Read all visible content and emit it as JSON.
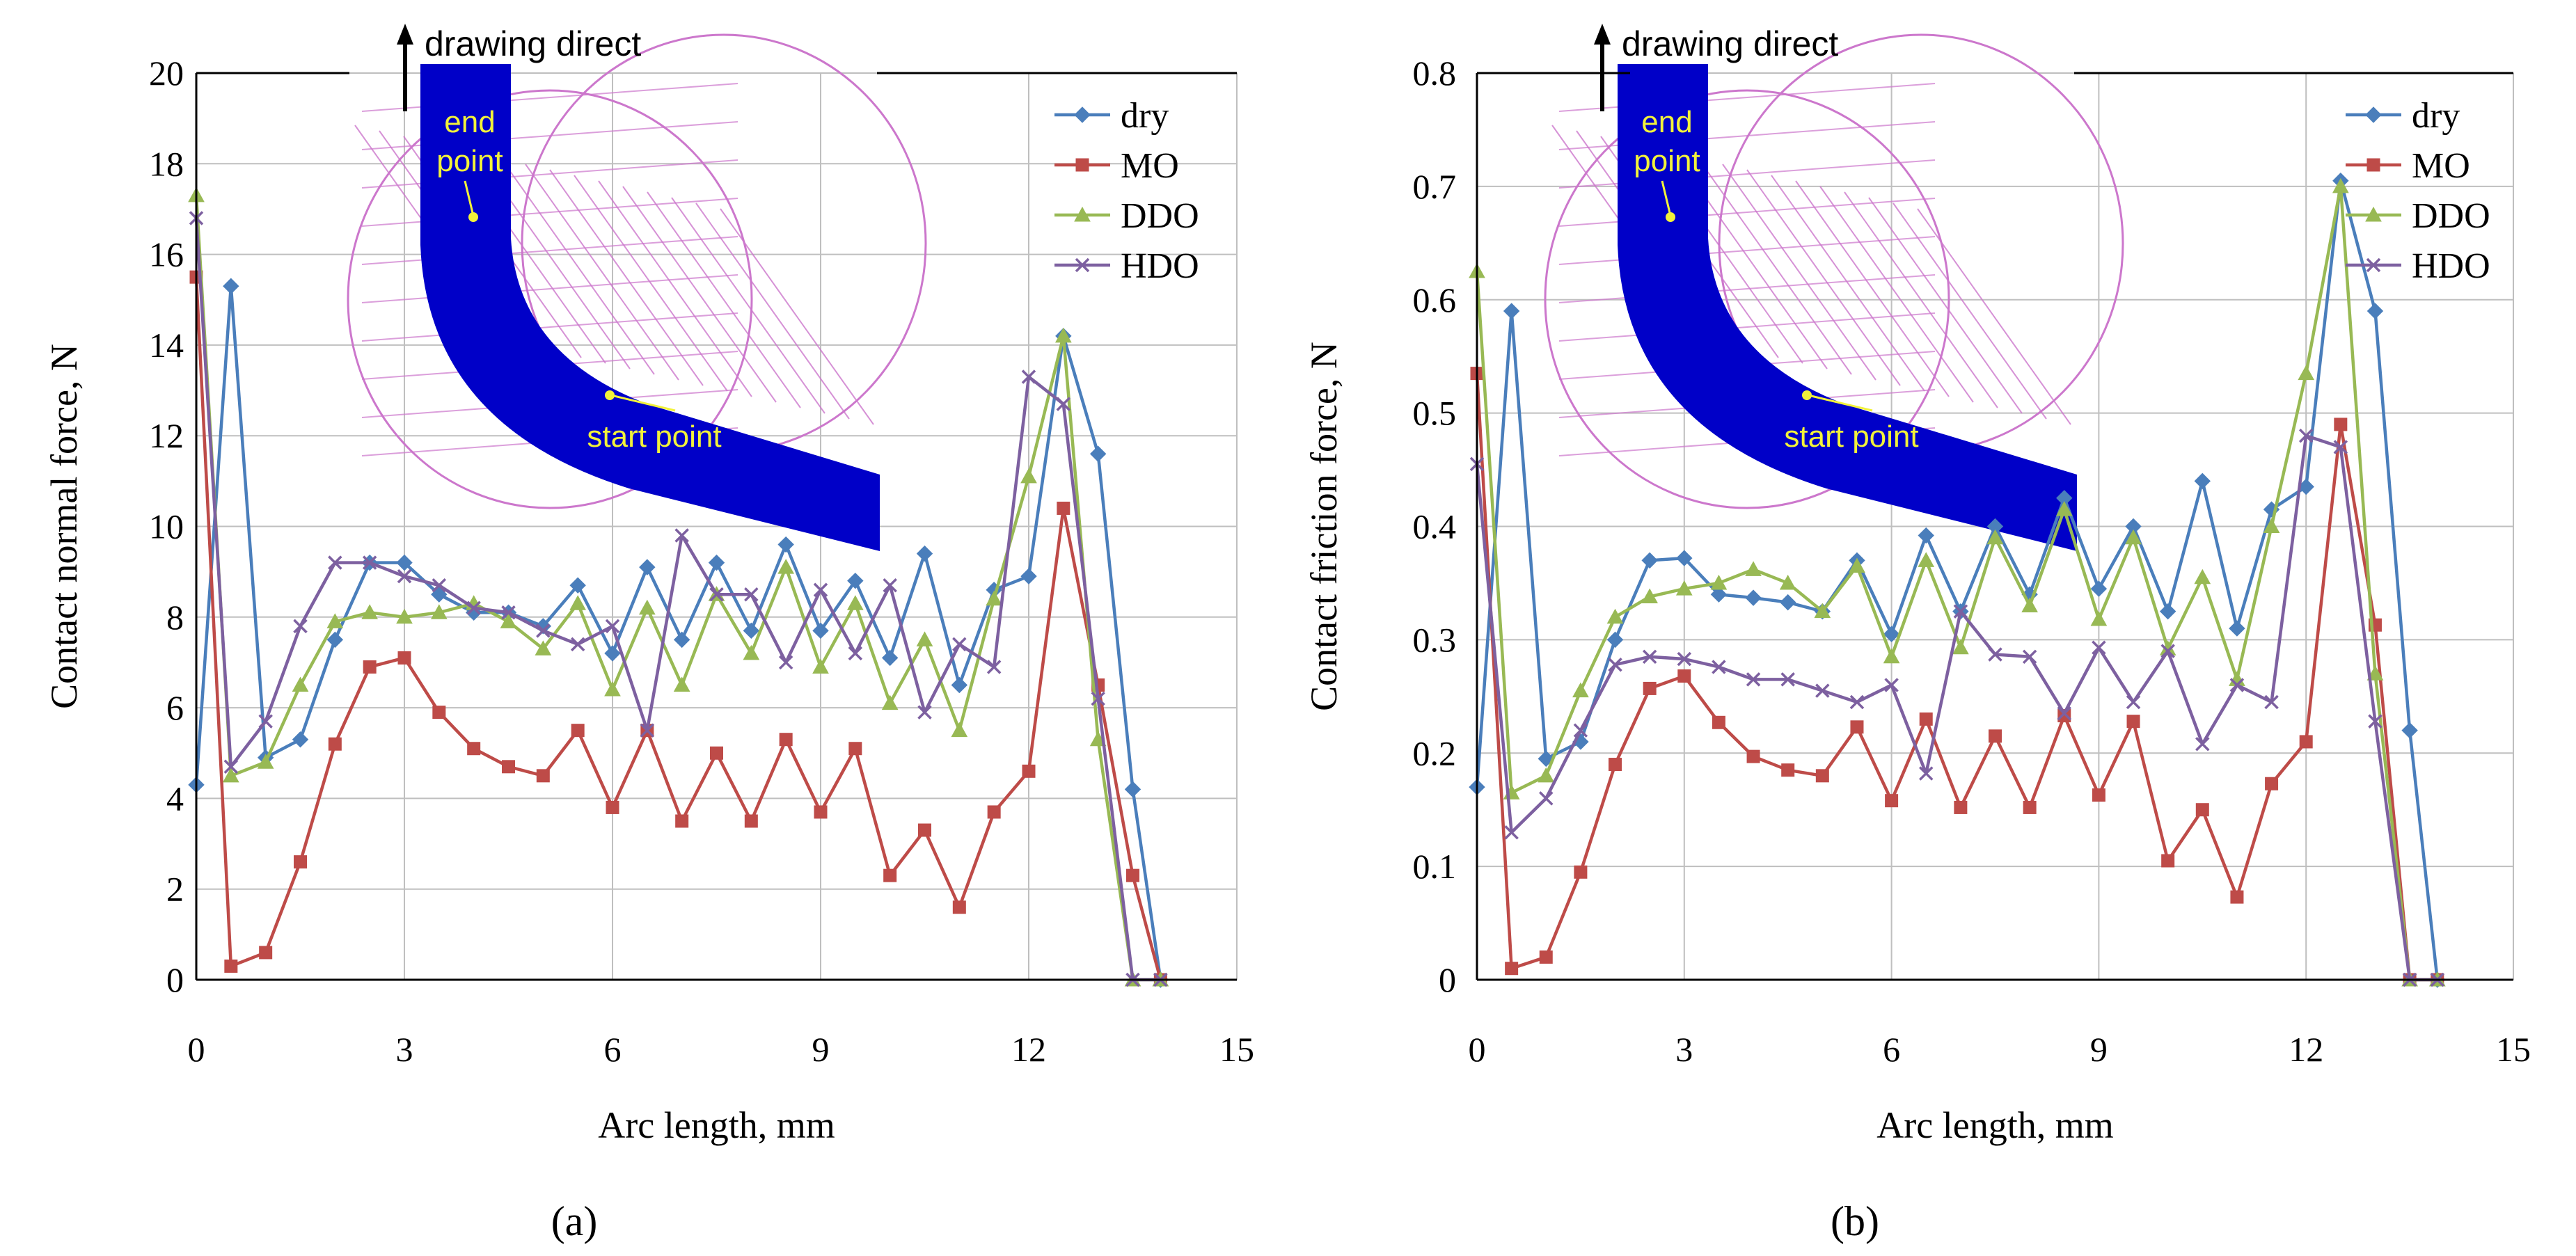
{
  "colors": {
    "dry": "#4a7ebb",
    "MO": "#be4b48",
    "DDO": "#98b954",
    "HDO": "#7d60a0",
    "grid": "#bfbfbf",
    "axis": "#000000",
    "wire": "#0000c8",
    "die": "#cc77cc",
    "inset_text": "#f2f23a"
  },
  "chart_data": [
    {
      "type": "line",
      "panel_label": "(a)",
      "xlabel": "Arc length, mm",
      "ylabel": "Contact normal force, N",
      "xlim": [
        0,
        15
      ],
      "ylim": [
        0,
        20
      ],
      "xticks": [
        "0",
        "3",
        "6",
        "9",
        "12",
        "15"
      ],
      "yticks": [
        "0",
        "2",
        "4",
        "6",
        "8",
        "10",
        "12",
        "14",
        "16",
        "18",
        "20"
      ],
      "grid": true,
      "legend": "top-right",
      "inset": {
        "title": "drawing direct",
        "end_label_1": "end",
        "end_label_2": "point",
        "start_label": "start point"
      },
      "series": [
        {
          "name": "dry",
          "marker": "diamond",
          "x": [
            0,
            0.5,
            1,
            1.5,
            2,
            2.5,
            3,
            3.5,
            4,
            4.5,
            5,
            5.5,
            6,
            6.5,
            7,
            7.5,
            8,
            8.5,
            9,
            9.5,
            10,
            10.5,
            11,
            11.5,
            12,
            12.5,
            13,
            13.5,
            13.9
          ],
          "y": [
            4.3,
            15.3,
            4.9,
            5.3,
            7.5,
            9.2,
            9.2,
            8.5,
            8.1,
            8.1,
            7.8,
            8.7,
            7.2,
            9.1,
            7.5,
            9.2,
            7.7,
            9.6,
            7.7,
            8.8,
            7.1,
            9.4,
            6.5,
            8.6,
            8.9,
            14.2,
            11.6,
            4.2,
            0
          ]
        },
        {
          "name": "MO",
          "marker": "square",
          "x": [
            0,
            0.5,
            1,
            1.5,
            2,
            2.5,
            3,
            3.5,
            4,
            4.5,
            5,
            5.5,
            6,
            6.5,
            7,
            7.5,
            8,
            8.5,
            9,
            9.5,
            10,
            10.5,
            11,
            11.5,
            12,
            12.5,
            13,
            13.5,
            13.9
          ],
          "y": [
            15.5,
            0.3,
            0.6,
            2.6,
            5.2,
            6.9,
            7.1,
            5.9,
            5.1,
            4.7,
            4.5,
            5.5,
            3.8,
            5.5,
            3.5,
            5,
            3.5,
            5.3,
            3.7,
            5.1,
            2.3,
            3.3,
            1.6,
            3.7,
            4.6,
            10.4,
            6.5,
            2.3,
            0
          ]
        },
        {
          "name": "DDO",
          "marker": "triangle",
          "x": [
            0,
            0.5,
            1,
            1.5,
            2,
            2.5,
            3,
            3.5,
            4,
            4.5,
            5,
            5.5,
            6,
            6.5,
            7,
            7.5,
            8,
            8.5,
            9,
            9.5,
            10,
            10.5,
            11,
            11.5,
            12,
            12.5,
            13,
            13.5,
            13.9
          ],
          "y": [
            17.3,
            4.5,
            4.8,
            6.5,
            7.9,
            8.1,
            8,
            8.1,
            8.3,
            7.9,
            7.3,
            8.3,
            6.4,
            8.2,
            6.5,
            8.5,
            7.2,
            9.1,
            6.9,
            8.3,
            6.1,
            7.5,
            5.5,
            8.4,
            11.1,
            14.2,
            5.3,
            0,
            0
          ]
        },
        {
          "name": "HDO",
          "marker": "x",
          "x": [
            0,
            0.5,
            1,
            1.5,
            2,
            2.5,
            3,
            3.5,
            4,
            4.5,
            5,
            5.5,
            6,
            6.5,
            7,
            7.5,
            8,
            8.5,
            9,
            9.5,
            10,
            10.5,
            11,
            11.5,
            12,
            12.5,
            13,
            13.5,
            13.9
          ],
          "y": [
            16.8,
            4.7,
            5.7,
            7.8,
            9.2,
            9.2,
            8.9,
            8.7,
            8.2,
            8.1,
            7.7,
            7.4,
            7.8,
            5.5,
            9.8,
            8.5,
            8.5,
            7,
            8.6,
            7.2,
            8.7,
            5.9,
            7.4,
            6.9,
            13.3,
            12.7,
            6.2,
            0,
            0
          ]
        }
      ]
    },
    {
      "type": "line",
      "panel_label": "(b)",
      "xlabel": "Arc length, mm",
      "ylabel": "Contact friction force, N",
      "xlim": [
        0,
        15
      ],
      "ylim": [
        0,
        0.8
      ],
      "xticks": [
        "0",
        "3",
        "6",
        "9",
        "12",
        "15"
      ],
      "yticks": [
        "0",
        "0.1",
        "0.2",
        "0.3",
        "0.4",
        "0.5",
        "0.6",
        "0.7",
        "0.8"
      ],
      "grid": true,
      "legend": "top-right",
      "inset": {
        "title": "drawing direct",
        "end_label_1": "end",
        "end_label_2": "point",
        "start_label": "start point"
      },
      "series": [
        {
          "name": "dry",
          "marker": "diamond",
          "x": [
            0,
            0.5,
            1,
            1.5,
            2,
            2.5,
            3,
            3.5,
            4,
            4.5,
            5,
            5.5,
            6,
            6.5,
            7,
            7.5,
            8,
            8.5,
            9,
            9.5,
            10,
            10.5,
            11,
            11.5,
            12,
            12.5,
            13,
            13.5,
            13.9
          ],
          "y": [
            0.17,
            0.59,
            0.195,
            0.21,
            0.3,
            0.37,
            0.372,
            0.34,
            0.337,
            0.333,
            0.325,
            0.37,
            0.305,
            0.392,
            0.325,
            0.4,
            0.34,
            0.425,
            0.345,
            0.4,
            0.325,
            0.44,
            0.31,
            0.415,
            0.435,
            0.705,
            0.59,
            0.22,
            0
          ]
        },
        {
          "name": "MO",
          "marker": "square",
          "x": [
            0,
            0.5,
            1,
            1.5,
            2,
            2.5,
            3,
            3.5,
            4,
            4.5,
            5,
            5.5,
            6,
            6.5,
            7,
            7.5,
            8,
            8.5,
            9,
            9.5,
            10,
            10.5,
            11,
            11.5,
            12,
            12.5,
            13,
            13.5,
            13.9
          ],
          "y": [
            0.535,
            0.01,
            0.02,
            0.095,
            0.19,
            0.257,
            0.268,
            0.227,
            0.197,
            0.185,
            0.18,
            0.223,
            0.158,
            0.23,
            0.152,
            0.215,
            0.152,
            0.233,
            0.163,
            0.228,
            0.105,
            0.15,
            0.073,
            0.173,
            0.21,
            0.49,
            0.313,
            0,
            0
          ]
        },
        {
          "name": "DDO",
          "marker": "triangle",
          "x": [
            0,
            0.5,
            1,
            1.5,
            2,
            2.5,
            3,
            3.5,
            4,
            4.5,
            5,
            5.5,
            6,
            6.5,
            7,
            7.5,
            8,
            8.5,
            9,
            9.5,
            10,
            10.5,
            11,
            11.5,
            12,
            12.5,
            13,
            13.5,
            13.9
          ],
          "y": [
            0.625,
            0.165,
            0.18,
            0.255,
            0.32,
            0.338,
            0.345,
            0.35,
            0.362,
            0.35,
            0.325,
            0.365,
            0.285,
            0.37,
            0.293,
            0.39,
            0.33,
            0.415,
            0.318,
            0.39,
            0.292,
            0.355,
            0.265,
            0.4,
            0.535,
            0.7,
            0.27,
            0,
            0
          ]
        },
        {
          "name": "HDO",
          "marker": "x",
          "x": [
            0,
            0.5,
            1,
            1.5,
            2,
            2.5,
            3,
            3.5,
            4,
            4.5,
            5,
            5.5,
            6,
            6.5,
            7,
            7.5,
            8,
            8.5,
            9,
            9.5,
            10,
            10.5,
            11,
            11.5,
            12,
            12.5,
            13,
            13.5,
            13.9
          ],
          "y": [
            0.455,
            0.13,
            0.16,
            0.22,
            0.278,
            0.285,
            0.283,
            0.276,
            0.265,
            0.265,
            0.255,
            0.245,
            0.26,
            0.182,
            0.325,
            0.287,
            0.285,
            0.235,
            0.293,
            0.245,
            0.29,
            0.208,
            0.26,
            0.245,
            0.48,
            0.47,
            0.228,
            0,
            0
          ]
        }
      ]
    }
  ]
}
